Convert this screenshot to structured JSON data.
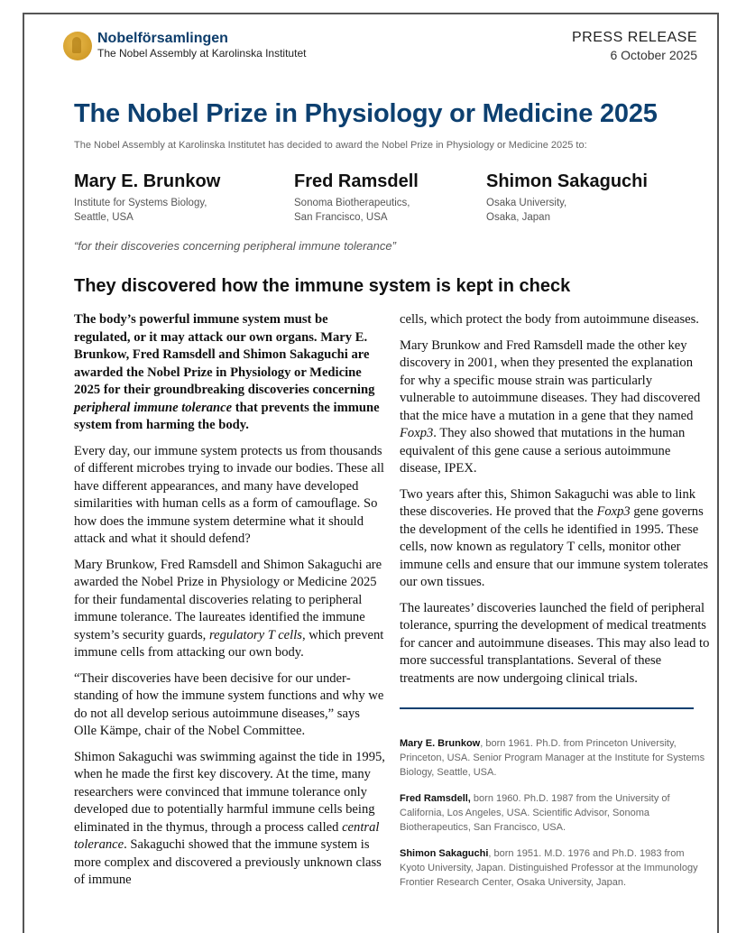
{
  "header": {
    "logo_name": "Nobelförsamlingen",
    "logo_sub": "The Nobel Assembly at Karolinska Institutet",
    "doc_type": "PRESS RELEASE",
    "date": "6 October 2025"
  },
  "title": "The Nobel Prize in Physiology or Medicine 2025",
  "intro": "The Nobel Assembly at Karolinska Institutet has decided to award the Nobel Prize in Physiology or Medicine 2025 to:",
  "laureates": [
    {
      "name": "Mary E. Brunkow",
      "aff1": "Institute for Systems Biology,",
      "aff2": "Seattle, USA"
    },
    {
      "name": "Fred Ramsdell",
      "aff1": "Sonoma Biotherapeutics,",
      "aff2": "San Francisco, USA"
    },
    {
      "name": "Shimon Sakaguchi",
      "aff1": "Osaka University,",
      "aff2": "Osaka, Japan"
    }
  ],
  "motivation": "“for their discoveries concerning peripheral immune tolerance”",
  "heading": "They discovered how the immune system is kept in check",
  "body": {
    "lead_a": "The body’s powerful immune system must be regulated, or it may attack our own organs. Mary E. Brunkow, Fred Ramsdell and Shimon Sakaguchi are awarded the Nobel Prize in Physiology or Medicine 2025 for their groundbreaking discoveries concerning ",
    "lead_em": "peripheral immune tolerance",
    "lead_b": " that prevents the immune system from harming the body.",
    "p1": "Every day, our immune system protects us from thousands of different microbes trying to invade our bodies. These all have different appearances, and many have developed similarities with human cells as a form of camouflage. So how does the immune system determine what it should attack and what it should defend?",
    "p2_a": "Mary Brunkow, Fred Ramsdell and Shimon Sakaguchi are awarded the Nobel Prize in Physiology or Medicine 2025 for their fundamental discoveries relating to peripheral immune tolerance. The laureates identified the immune system’s security guards, ",
    "p2_em": "regulatory T cells",
    "p2_b": ", which prevent immune cells from attacking our own body.",
    "p3": "“Their discoveries have been decisive for our under­standing of how the immune system functions and why we do not all develop serious autoimmune diseases,” says Olle Kämpe, chair of the Nobel Committee.",
    "p4_a": "Shimon Sakaguchi was swimming against the tide in 1995, when he made the first key discovery. At the time, many researchers were convinced that immune tolerance only developed due to potentially harmful immune cells being eliminated in the thymus, through a process called ",
    "p4_em": "central tolerance",
    "p4_b": ". Sakaguchi showed that the immune system is more complex and discovered a previously unknown class of immune",
    "p5": "cells, which protect the body from autoimmune diseases.",
    "p6_a": "Mary Brunkow and Fred Ramsdell made the other key discovery in 2001, when they presented the explanation for why a specific mouse strain was particularly vulnerable to autoimmune diseases. They had discovered that the mice have a mutation in a gene that they named ",
    "p6_em": "Foxp3",
    "p6_b": ". They also showed that mutations in the human equivalent of this gene cause a serious autoimmune disease, IPEX.",
    "p7_a": "Two years after this, Shimon Sakaguchi was able to link these discoveries. He proved that the ",
    "p7_em": "Foxp3",
    "p7_b": " gene governs the development of the cells he identified in 1995. These cells, now known as regulatory T cells, monitor other immune cells and ensure that our immune system tolerates our own tissues.",
    "p8": "The laureates’ discoveries launched the field of peripheral tolerance, spurring the development of medical treatments for cancer and autoimmune diseases. This may also lead to more successful transplantations. Several of these treatments are now undergoing clinical trials."
  },
  "bios": [
    {
      "name": "Mary E. Brunkow",
      "text": ", born 1961. Ph.D. from Princeton University, Princeton, USA. Senior Program Manager at the Institute for Systems Biology, Seattle, USA."
    },
    {
      "name": "Fred Ramsdell,",
      "text": " born 1960. Ph.D. 1987 from the University of California, Los Angeles, USA. Scientific Advisor, Sonoma Biotherapeutics, San Francisco, USA."
    },
    {
      "name": "Shimon Sakaguchi",
      "text": ", born 1951. M.D. 1976 and Ph.D. 1983 from Kyoto University, Japan. Distinguished Professor at the Immunology Frontier Research Center, Osaka University, Japan."
    }
  ],
  "colors": {
    "title": "#0d4070",
    "medal": "#d4a12e"
  }
}
